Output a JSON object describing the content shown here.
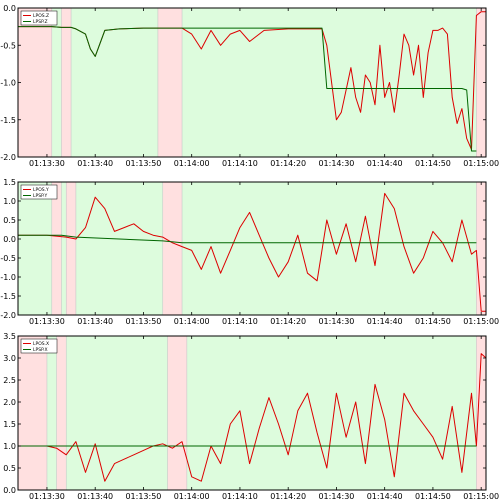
{
  "chart_data": [
    {
      "type": "line",
      "legend_placement": "top-left",
      "grid": false,
      "xlim": [
        "01:13:24",
        "01:15:01"
      ],
      "ylim": [
        -2.0,
        0.0
      ],
      "yticks": [
        "0.0",
        "-0.5",
        "-1.0",
        "-1.5",
        "-2.0"
      ],
      "xticks": [
        "01:13:30",
        "01:13:40",
        "01:13:50",
        "01:14:00",
        "01:14:10",
        "01:14:20",
        "01:14:30",
        "01:14:40",
        "01:14:50",
        "01:15:00"
      ],
      "background": {
        "green": "#ddfcdd",
        "red": "#ffe0e0",
        "red_intervals": [
          [
            "01:13:24",
            "01:13:31"
          ],
          [
            "01:13:33",
            "01:13:35"
          ],
          [
            "01:13:53",
            "01:13:58"
          ],
          [
            "01:14:59",
            "01:15:01"
          ]
        ]
      },
      "series": [
        {
          "name": "LPOS.Z",
          "color": "#dd0000",
          "x": [
            "01:13:24",
            "01:13:31",
            "01:13:33",
            "01:13:35",
            "01:13:36",
            "01:13:38",
            "01:13:39",
            "01:13:40",
            "01:13:42",
            "01:13:45",
            "01:13:50",
            "01:13:53",
            "01:13:58",
            "01:14:00",
            "01:14:02",
            "01:14:04",
            "01:14:06",
            "01:14:08",
            "01:14:10",
            "01:14:12",
            "01:14:15",
            "01:14:20",
            "01:14:25",
            "01:14:27",
            "01:14:28",
            "01:14:29",
            "01:14:30",
            "01:14:31",
            "01:14:32",
            "01:14:33",
            "01:14:34",
            "01:14:35",
            "01:14:36",
            "01:14:37",
            "01:14:38",
            "01:14:39",
            "01:14:40",
            "01:14:41",
            "01:14:42",
            "01:14:43",
            "01:14:44",
            "01:14:45",
            "01:14:46",
            "01:14:47",
            "01:14:48",
            "01:14:49",
            "01:14:50",
            "01:14:51",
            "01:14:52",
            "01:14:53",
            "01:14:54",
            "01:14:55",
            "01:14:56",
            "01:14:57",
            "01:14:58",
            "01:14:59",
            "01:15:00",
            "01:15:01"
          ],
          "y": [
            -0.25,
            -0.25,
            -0.26,
            -0.26,
            -0.28,
            -0.35,
            -0.55,
            -0.65,
            -0.3,
            -0.28,
            -0.27,
            -0.27,
            -0.27,
            -0.35,
            -0.55,
            -0.3,
            -0.5,
            -0.35,
            -0.3,
            -0.45,
            -0.3,
            -0.28,
            -0.28,
            -0.28,
            -0.5,
            -1.0,
            -1.5,
            -1.4,
            -1.1,
            -0.8,
            -1.2,
            -1.4,
            -0.9,
            -1.0,
            -1.3,
            -0.5,
            -1.2,
            -1.0,
            -1.4,
            -0.9,
            -0.35,
            -0.5,
            -0.9,
            -0.5,
            -1.2,
            -0.6,
            -0.3,
            -0.3,
            -0.27,
            -0.35,
            -1.2,
            -1.55,
            -1.35,
            -1.75,
            -1.9,
            -0.1,
            -0.05,
            -0.05
          ]
        },
        {
          "name": "LPSP.Z",
          "color": "#006600",
          "x": [
            "01:13:24",
            "01:13:31",
            "01:13:33",
            "01:13:35",
            "01:13:36",
            "01:13:38",
            "01:13:39",
            "01:13:40",
            "01:13:42",
            "01:13:45",
            "01:13:50",
            "01:13:53",
            "01:13:58",
            "01:14:00",
            "01:14:10",
            "01:14:20",
            "01:14:25",
            "01:14:27",
            "01:14:28",
            "01:14:40",
            "01:14:50",
            "01:14:55",
            "01:14:56",
            "01:14:57",
            "01:14:58",
            "01:14:59"
          ],
          "y": [
            -0.25,
            -0.25,
            -0.26,
            -0.26,
            -0.28,
            -0.35,
            -0.55,
            -0.65,
            -0.3,
            -0.28,
            -0.27,
            -0.27,
            -0.27,
            -0.27,
            -0.27,
            -0.27,
            -0.27,
            -0.27,
            -1.08,
            -1.08,
            -1.08,
            -1.08,
            -1.08,
            -1.1,
            -1.92,
            -1.92
          ]
        }
      ]
    },
    {
      "type": "line",
      "legend_placement": "top-left",
      "grid": false,
      "xlim": [
        "01:13:24",
        "01:15:01"
      ],
      "ylim": [
        -2.0,
        1.5
      ],
      "yticks": [
        "1.5",
        "1.0",
        "0.5",
        "0.0",
        "-0.5",
        "-1.0",
        "-1.5",
        "-2.0"
      ],
      "xticks": [
        "01:13:30",
        "01:13:40",
        "01:13:50",
        "01:14:00",
        "01:14:10",
        "01:14:20",
        "01:14:30",
        "01:14:40",
        "01:14:50",
        "01:15:00"
      ],
      "background": {
        "green": "#ddfcdd",
        "red": "#ffe0e0",
        "red_intervals": [
          [
            "01:13:31",
            "01:13:33"
          ],
          [
            "01:13:34",
            "01:13:36"
          ],
          [
            "01:13:54",
            "01:13:58"
          ],
          [
            "01:14:59",
            "01:15:01"
          ]
        ]
      },
      "series": [
        {
          "name": "LPOS.Y",
          "color": "#dd0000",
          "x": [
            "01:13:24",
            "01:13:30",
            "01:13:34",
            "01:13:36",
            "01:13:38",
            "01:13:40",
            "01:13:42",
            "01:13:44",
            "01:13:46",
            "01:13:48",
            "01:13:50",
            "01:13:52",
            "01:13:54",
            "01:13:56",
            "01:13:58",
            "01:14:00",
            "01:14:02",
            "01:14:04",
            "01:14:06",
            "01:14:08",
            "01:14:10",
            "01:14:12",
            "01:14:14",
            "01:14:16",
            "01:14:18",
            "01:14:20",
            "01:14:22",
            "01:14:24",
            "01:14:26",
            "01:14:28",
            "01:14:30",
            "01:14:32",
            "01:14:34",
            "01:14:36",
            "01:14:38",
            "01:14:40",
            "01:14:42",
            "01:14:44",
            "01:14:46",
            "01:14:48",
            "01:14:50",
            "01:14:52",
            "01:14:54",
            "01:14:56",
            "01:14:58",
            "01:14:59",
            "01:15:00",
            "01:15:01"
          ],
          "y": [
            0.1,
            0.1,
            0.05,
            0.0,
            0.3,
            1.1,
            0.8,
            0.2,
            0.3,
            0.4,
            0.2,
            0.1,
            0.05,
            -0.1,
            -0.2,
            -0.3,
            -0.8,
            -0.2,
            -0.9,
            -0.3,
            0.3,
            0.7,
            0.1,
            -0.5,
            -1.0,
            -0.6,
            0.1,
            -0.9,
            -1.1,
            0.5,
            -0.4,
            0.4,
            -0.6,
            0.6,
            -0.7,
            1.2,
            0.8,
            -0.2,
            -0.9,
            -0.5,
            0.2,
            -0.1,
            -0.6,
            0.5,
            -0.4,
            -0.3,
            -1.9,
            -1.9
          ]
        },
        {
          "name": "LPSP.Y",
          "color": "#006600",
          "x": [
            "01:13:24",
            "01:13:33",
            "01:13:36",
            "01:13:45",
            "01:13:54",
            "01:13:58",
            "01:14:10",
            "01:14:20",
            "01:14:30",
            "01:14:40",
            "01:14:50",
            "01:14:59"
          ],
          "y": [
            0.1,
            0.1,
            0.05,
            0.0,
            -0.05,
            -0.1,
            -0.1,
            -0.1,
            -0.1,
            -0.1,
            -0.1,
            -0.1
          ]
        }
      ]
    },
    {
      "type": "line",
      "legend_placement": "top-left",
      "grid": false,
      "xlim": [
        "01:13:24",
        "01:15:01"
      ],
      "ylim": [
        0.0,
        3.5
      ],
      "yticks": [
        "3.5",
        "3.0",
        "2.5",
        "2.0",
        "1.5",
        "1.0",
        "0.5",
        "0.0"
      ],
      "xticks": [
        "01:13:30",
        "01:13:40",
        "01:13:50",
        "01:14:00",
        "01:14:10",
        "01:14:20",
        "01:14:30",
        "01:14:40",
        "01:14:50",
        "01:15:00"
      ],
      "background": {
        "green": "#ddfcdd",
        "red": "#ffe0e0",
        "red_intervals": [
          [
            "01:13:24",
            "01:13:30"
          ],
          [
            "01:13:32",
            "01:13:34"
          ],
          [
            "01:13:55",
            "01:13:59"
          ],
          [
            "01:14:59",
            "01:15:01"
          ]
        ]
      },
      "series": [
        {
          "name": "LPOS.X",
          "color": "#dd0000",
          "x": [
            "01:13:24",
            "01:13:30",
            "01:13:32",
            "01:13:34",
            "01:13:36",
            "01:13:38",
            "01:13:40",
            "01:13:42",
            "01:13:44",
            "01:13:46",
            "01:13:48",
            "01:13:50",
            "01:13:52",
            "01:13:54",
            "01:13:56",
            "01:13:58",
            "01:14:00",
            "01:14:02",
            "01:14:04",
            "01:14:06",
            "01:14:08",
            "01:14:10",
            "01:14:12",
            "01:14:14",
            "01:14:16",
            "01:14:18",
            "01:14:20",
            "01:14:22",
            "01:14:24",
            "01:14:26",
            "01:14:28",
            "01:14:30",
            "01:14:32",
            "01:14:34",
            "01:14:36",
            "01:14:38",
            "01:14:40",
            "01:14:42",
            "01:14:44",
            "01:14:46",
            "01:14:48",
            "01:14:50",
            "01:14:52",
            "01:14:54",
            "01:14:56",
            "01:14:58",
            "01:14:59",
            "01:15:00",
            "01:15:01"
          ],
          "y": [
            1.0,
            1.0,
            0.95,
            0.8,
            1.1,
            0.4,
            1.05,
            0.2,
            0.6,
            0.7,
            0.8,
            0.9,
            1.0,
            1.05,
            0.95,
            1.1,
            0.3,
            0.2,
            1.0,
            0.6,
            1.5,
            1.8,
            0.6,
            1.4,
            2.1,
            1.5,
            0.8,
            1.8,
            2.2,
            1.3,
            0.5,
            2.2,
            1.2,
            2.0,
            0.6,
            2.4,
            1.6,
            0.3,
            2.2,
            1.8,
            1.5,
            1.2,
            0.7,
            1.9,
            0.4,
            2.2,
            1.0,
            3.1,
            3.0
          ]
        },
        {
          "name": "LPSP.X",
          "color": "#006600",
          "x": [
            "01:13:24",
            "01:13:30",
            "01:13:34",
            "01:13:40",
            "01:13:50",
            "01:13:58",
            "01:14:10",
            "01:14:20",
            "01:14:30",
            "01:14:40",
            "01:14:50",
            "01:14:59"
          ],
          "y": [
            1.0,
            1.0,
            1.0,
            1.0,
            1.0,
            1.0,
            1.0,
            1.0,
            1.0,
            1.0,
            1.0,
            1.0
          ]
        }
      ]
    }
  ]
}
